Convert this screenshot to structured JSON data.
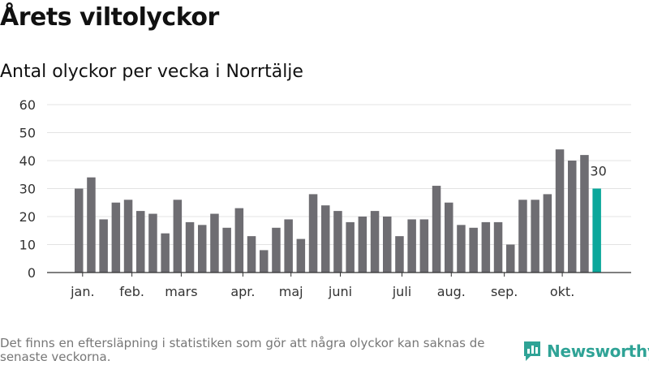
{
  "title": "Årets viltolyckor",
  "subtitle": "Antal olyckor per vecka i Norrtälje",
  "footnote": "Det finns en eftersläpning i statistiken som gör att några olyckor kan saknas de senaste veckorna.",
  "brand": {
    "name": "Newsworthy",
    "icon": "newsworthy-logo-icon",
    "color": "#2fa396"
  },
  "colors": {
    "bar": "#6e6d72",
    "highlight": "#0aa79b",
    "grid": "#e3e3e3",
    "axis": "#333333"
  },
  "chart_data": {
    "type": "bar",
    "title": "Antal olyckor per vecka i Norrtälje",
    "xlabel": "",
    "ylabel": "",
    "ylim": [
      0,
      60
    ],
    "yticks": [
      0,
      10,
      20,
      30,
      40,
      50,
      60
    ],
    "grid": true,
    "values": [
      30,
      34,
      19,
      25,
      26,
      22,
      21,
      14,
      26,
      18,
      17,
      21,
      16,
      23,
      13,
      8,
      16,
      19,
      12,
      28,
      24,
      22,
      18,
      20,
      22,
      20,
      13,
      19,
      19,
      31,
      25,
      17,
      16,
      18,
      18,
      10,
      26,
      26,
      28,
      44,
      40,
      42,
      30
    ],
    "highlight_index": 42,
    "highlight_label": "30",
    "month_labels": [
      {
        "label": "jan.",
        "index": 0.3
      },
      {
        "label": "feb.",
        "index": 4.3
      },
      {
        "label": "mars",
        "index": 8.3
      },
      {
        "label": "apr.",
        "index": 13.3
      },
      {
        "label": "maj",
        "index": 17.2
      },
      {
        "label": "juni",
        "index": 21.2
      },
      {
        "label": "juli",
        "index": 26.2
      },
      {
        "label": "aug.",
        "index": 30.2
      },
      {
        "label": "sep.",
        "index": 34.5
      },
      {
        "label": "okt.",
        "index": 39.2
      }
    ]
  }
}
